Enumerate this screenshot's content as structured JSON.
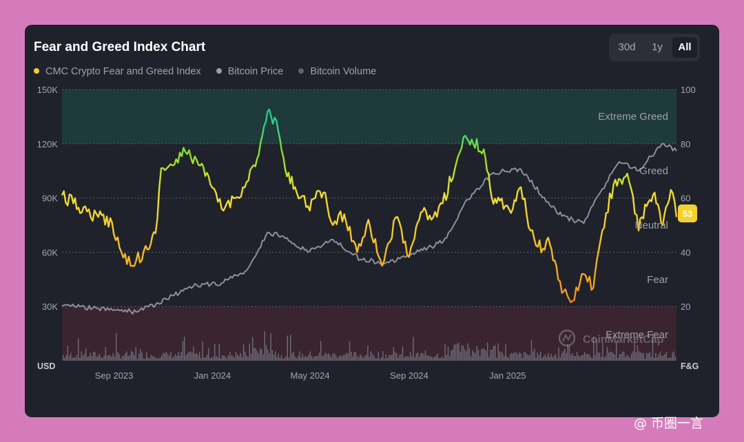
{
  "watermark": "@ 币圈一言",
  "chart_data": {
    "type": "line",
    "title": "Fear and Greed Index Chart",
    "time_range": {
      "options": [
        "30d",
        "1y",
        "All"
      ],
      "selected": "All"
    },
    "legend": [
      {
        "name": "CMC Crypto Fear and Greed Index",
        "color": "#f5d130"
      },
      {
        "name": "Bitcoin Price",
        "color": "#9a9ea8"
      },
      {
        "name": "Bitcoin Volume",
        "color": "#5f626b"
      }
    ],
    "left_axis": {
      "unit": "USD",
      "ticks": [
        "150K",
        "120K",
        "90K",
        "60K",
        "30K"
      ],
      "range": [
        0,
        150000
      ]
    },
    "right_axis": {
      "unit": "F&G",
      "ticks": [
        "100",
        "80",
        "60",
        "40",
        "20"
      ],
      "range": [
        0,
        100
      ]
    },
    "x_ticks": [
      "Sep 2023",
      "Jan 2024",
      "May 2024",
      "Sep 2024",
      "Jan 2025"
    ],
    "zones": [
      {
        "label": "Extreme Greed",
        "from": 80,
        "to": 100
      },
      {
        "label": "Greed",
        "from": 60,
        "to": 80
      },
      {
        "label": "Neutral",
        "from": 40,
        "to": 60
      },
      {
        "label": "Fear",
        "from": 20,
        "to": 40
      },
      {
        "label": "Extreme Fear",
        "from": 0,
        "to": 20
      }
    ],
    "grid": true,
    "current_value": "53",
    "watermark_logo": "CoinMarketCap",
    "fear_greed_series": {
      "name": "CMC Crypto Fear and Greed Index",
      "x": [
        "2023-07-01",
        "2023-07-15",
        "2023-08-01",
        "2023-08-15",
        "2023-09-01",
        "2023-09-15",
        "2023-10-01",
        "2023-10-15",
        "2023-10-25",
        "2023-11-01",
        "2023-11-15",
        "2023-12-01",
        "2023-12-15",
        "2024-01-01",
        "2024-01-15",
        "2024-02-01",
        "2024-02-15",
        "2024-03-01",
        "2024-03-12",
        "2024-03-25",
        "2024-04-05",
        "2024-04-15",
        "2024-05-01",
        "2024-05-10",
        "2024-05-20",
        "2024-06-01",
        "2024-06-15",
        "2024-07-01",
        "2024-07-15",
        "2024-08-01",
        "2024-08-06",
        "2024-08-20",
        "2024-09-01",
        "2024-09-10",
        "2024-09-20",
        "2024-10-01",
        "2024-10-15",
        "2024-11-01",
        "2024-11-12",
        "2024-11-22",
        "2024-12-05",
        "2024-12-15",
        "2024-12-25",
        "2025-01-10",
        "2025-01-20",
        "2025-02-01",
        "2025-02-10",
        "2025-02-25",
        "2025-03-05",
        "2025-03-12",
        "2025-03-25",
        "2025-04-08",
        "2025-04-20",
        "2025-05-01",
        "2025-05-15",
        "2025-06-01",
        "2025-06-15",
        "2025-06-25",
        "2025-07-05",
        "2025-07-15",
        "2025-07-25",
        "2025-08-01"
      ],
      "values": [
        61,
        58,
        55,
        53,
        51,
        38,
        37,
        41,
        47,
        71,
        72,
        77,
        74,
        65,
        56,
        60,
        66,
        76,
        92,
        85,
        68,
        64,
        57,
        60,
        62,
        50,
        54,
        40,
        52,
        35,
        41,
        53,
        39,
        45,
        55,
        52,
        58,
        73,
        83,
        80,
        78,
        60,
        59,
        56,
        64,
        48,
        42,
        43,
        35,
        25,
        22,
        32,
        27,
        48,
        65,
        69,
        48,
        57,
        62,
        50,
        63,
        53
      ]
    },
    "bitcoin_price_series": {
      "name": "Bitcoin Price",
      "x": [
        "2023-07-01",
        "2023-08-15",
        "2023-10-01",
        "2023-10-25",
        "2023-11-15",
        "2023-12-15",
        "2024-01-15",
        "2024-02-15",
        "2024-03-12",
        "2024-04-05",
        "2024-05-01",
        "2024-06-01",
        "2024-07-05",
        "2024-08-05",
        "2024-09-01",
        "2024-10-01",
        "2024-10-20",
        "2024-11-12",
        "2024-12-17",
        "2025-01-20",
        "2025-02-25",
        "2025-03-12",
        "2025-04-08",
        "2025-05-01",
        "2025-05-22",
        "2025-06-15",
        "2025-07-14",
        "2025-08-01"
      ],
      "values": [
        30500,
        29000,
        27000,
        31000,
        36000,
        42000,
        43000,
        50000,
        71000,
        68000,
        60000,
        67000,
        56000,
        54000,
        58000,
        63000,
        68000,
        88000,
        104000,
        106000,
        86000,
        80000,
        76000,
        95000,
        110000,
        105000,
        120000,
        116000
      ]
    }
  }
}
